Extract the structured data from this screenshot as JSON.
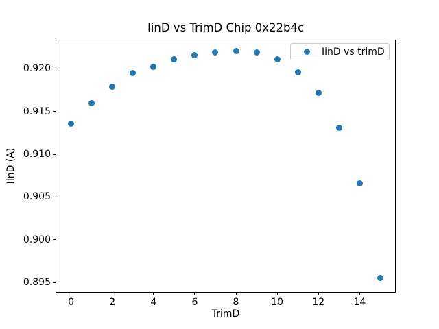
{
  "chart_data": {
    "type": "scatter",
    "title": "IinD vs TrimD Chip 0x22b4c",
    "xlabel": "TrimD",
    "ylabel": "IinD (A)",
    "legend": {
      "label": "IinD vs trimD",
      "position": "upper right"
    },
    "marker": "circle",
    "marker_color": "#1f77b4",
    "background_color": "#ffffff",
    "grid": false,
    "x": [
      0,
      1,
      2,
      3,
      4,
      5,
      6,
      7,
      8,
      9,
      10,
      11,
      12,
      13,
      14,
      15
    ],
    "y": [
      0.9136,
      0.916,
      0.9179,
      0.9195,
      0.9202,
      0.9211,
      0.9216,
      0.9219,
      0.9221,
      0.9219,
      0.9211,
      0.9196,
      0.9172,
      0.9131,
      0.9066,
      0.8955
    ],
    "xlim": [
      -0.75,
      15.75
    ],
    "ylim": [
      0.8938,
      0.9234
    ],
    "xticks": [
      0,
      2,
      4,
      6,
      8,
      10,
      12,
      14
    ],
    "xticklabels": [
      "0",
      "2",
      "4",
      "6",
      "8",
      "10",
      "12",
      "14"
    ],
    "yticks": [
      0.895,
      0.9,
      0.905,
      0.91,
      0.915,
      0.92
    ],
    "yticklabels": [
      "0.895",
      "0.900",
      "0.905",
      "0.910",
      "0.915",
      "0.920"
    ]
  }
}
